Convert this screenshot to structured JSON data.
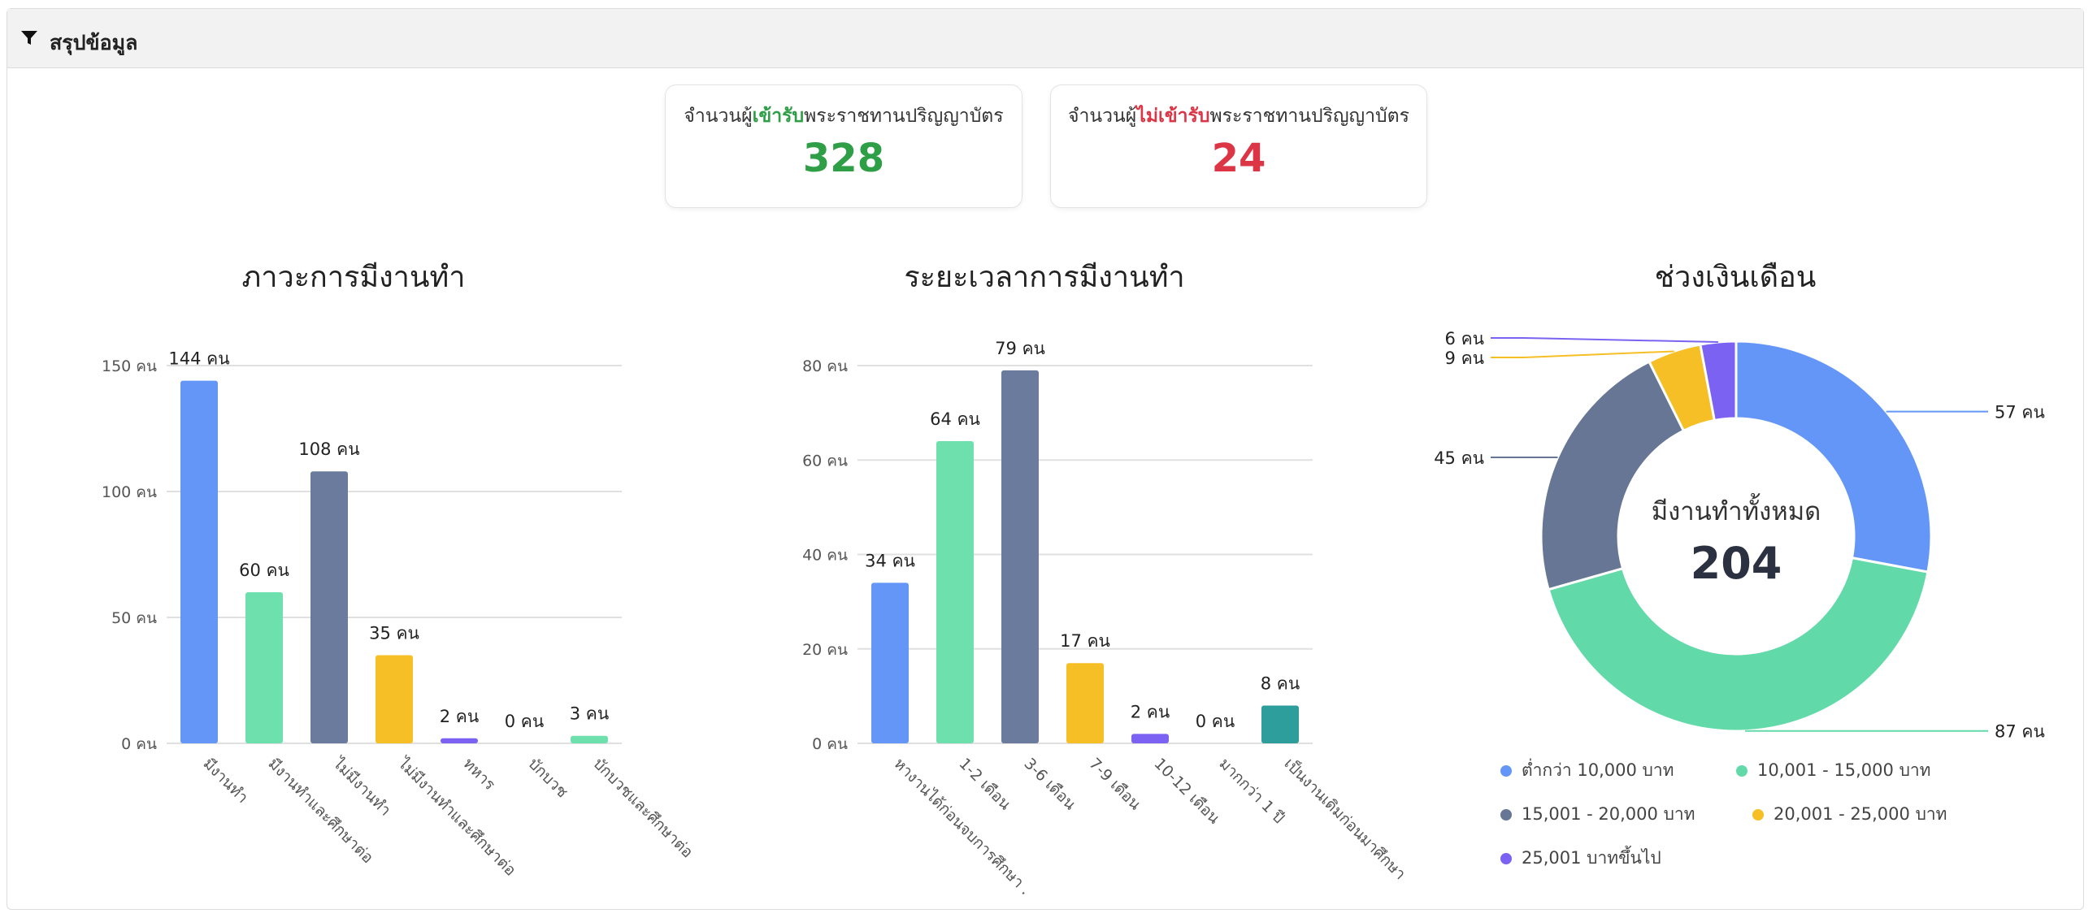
{
  "header": {
    "title": "สรุปข้อมูล",
    "icon": "filter-icon"
  },
  "cards": [
    {
      "prefix": "จำนวนผู้",
      "highlight": "เข้ารับ",
      "suffix": "พระราชทานปริญญาบัตร",
      "value": "328",
      "color": "#2e9e47"
    },
    {
      "prefix": "จำนวนผู้",
      "highlight": "ไม่เข้ารับ",
      "suffix": "พระราชทานปริญญาบัตร",
      "value": "24",
      "color": "#dc3545"
    }
  ],
  "chart_data": [
    {
      "type": "bar",
      "title": "ภาวะการมีงานทำ",
      "categories": [
        "มีงานทำ",
        "มีงานทำและศึกษาต่อ",
        "ไม่มีงานทำ",
        "ไม่มีงานทำและศึกษาต่อ",
        "ทหาร",
        "บักบวช",
        "บักบวชและศึกษาต่อ"
      ],
      "values": [
        144,
        60,
        108,
        35,
        2,
        0,
        3
      ],
      "value_labels": [
        "144 คน",
        "60 คน",
        "108 คน",
        "35 คน",
        "2 คน",
        "0 คน",
        "3 คน"
      ],
      "y_ticks": [
        "0 คน",
        "50 คน",
        "100 คน",
        "150 คน"
      ],
      "ylim": [
        0,
        150
      ],
      "grid": true,
      "colors": [
        "#6396f7",
        "#6ee0ad",
        "#6a7b9e",
        "#f6bf26",
        "#7b62f2",
        "#6ee0ad",
        "#6ee0ad"
      ]
    },
    {
      "type": "bar",
      "title": "ระยะเวลาการมีงานทำ",
      "categories": [
        "หางานได้ก่อนจบการศึกษา",
        "1-2 เดือน",
        "3-6 เดือน",
        "7-9 เดือน",
        "10-12 เดือน",
        "มากกว่า 1 ปี",
        "เป็นงานเดิมก่อนมาศึกษา"
      ],
      "tick_text": [
        "หางานได้ก่อนจบการศึกษา .",
        "1-2 เดือน",
        "3-6 เดือน",
        "7-9 เดือน",
        "10-12 เดือน",
        "มากกว่า 1 ปี",
        "เป็นงานเดิมก่อนมาศึกษา"
      ],
      "values": [
        34,
        64,
        79,
        17,
        2,
        0,
        8
      ],
      "value_labels": [
        "34 คน",
        "64 คน",
        "79 คน",
        "17 คน",
        "2 คน",
        "0 คน",
        "8 คน"
      ],
      "y_ticks": [
        "0 คน",
        "20 คน",
        "40 คน",
        "60 คน",
        "80 คน"
      ],
      "ylim": [
        0,
        80
      ],
      "grid": true,
      "colors": [
        "#6396f7",
        "#6ee0ad",
        "#6a7b9e",
        "#f6bf26",
        "#7b62f2",
        "#2e9e9c",
        "#2e9e9c"
      ]
    },
    {
      "type": "pie",
      "title": "ช่วงเงินเดือน",
      "categories": [
        "ต่ำกว่า 10,000 บาท",
        "10,001 - 15,000 บาท",
        "15,001 - 20,000 บาท",
        "20,001 - 25,000 บาท",
        "25,001 บาทขึ้นไป"
      ],
      "values": [
        57,
        87,
        45,
        9,
        6
      ],
      "value_labels": [
        "57 คน",
        "87 คน",
        "45 คน",
        "9 คน",
        "6 คน"
      ],
      "colors": [
        "#6396f7",
        "#62d9a9",
        "#667694",
        "#f6bf26",
        "#7b62f2"
      ],
      "center_label": "มีงานทำทั้งหมด",
      "center_value": "204",
      "legend_position": "bottom"
    }
  ]
}
